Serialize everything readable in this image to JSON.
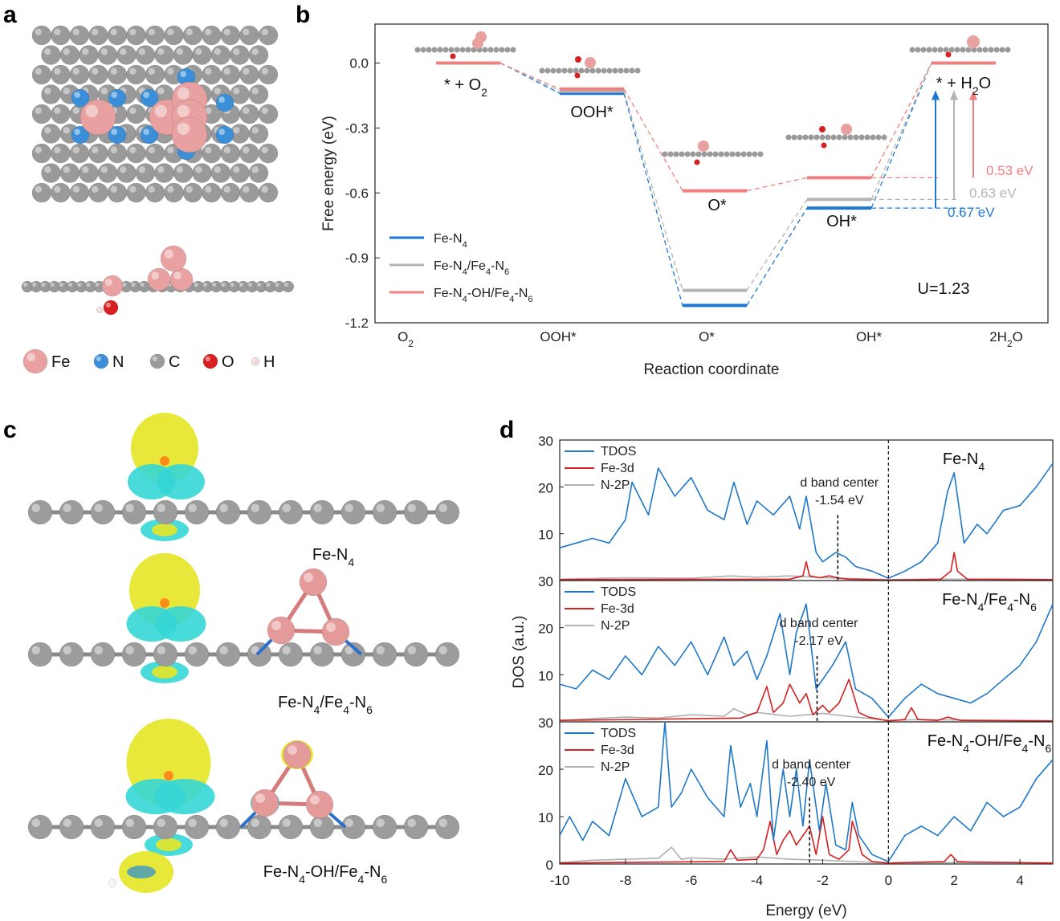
{
  "panels": {
    "a": "a",
    "b": "b",
    "c": "c",
    "d": "d"
  },
  "panel_a": {
    "legend": [
      {
        "label": "Fe",
        "color": "#e8a0a0"
      },
      {
        "label": "N",
        "color": "#3a8fd8"
      },
      {
        "label": "C",
        "color": "#9a9a9a"
      },
      {
        "label": "O",
        "color": "#d82020"
      },
      {
        "label": "H",
        "color": "#f2dada"
      }
    ]
  },
  "panel_c": {
    "labels": [
      "Fe-N4",
      "Fe-N4/Fe4-N6",
      "Fe-N4-OH/Fe4-N6"
    ],
    "colors": {
      "yellow": "#e6e626",
      "cyan": "#35d6d6",
      "carbon": "#9c9c9c",
      "iron": "#e59a9a",
      "iron_bond": "#d57b7b"
    }
  },
  "chart_data": [
    {
      "id": "b",
      "type": "line",
      "title": "",
      "xlabel": "Reaction coordinate",
      "ylabel": "Free energy (eV)",
      "categories": [
        "O2",
        "OOH*",
        "O*",
        "OH*",
        "2H2O"
      ],
      "ylim": [
        -1.2,
        0.18
      ],
      "yticks": [
        0.0,
        -0.3,
        -0.6,
        -0.9,
        -1.2
      ],
      "ytick_labels": [
        "0.0",
        "-0.3",
        "-0.6",
        "-0.9",
        "-1.2"
      ],
      "series": [
        {
          "name": "Fe-N4",
          "color": "#1f77d4",
          "values": [
            0.0,
            -0.14,
            -1.12,
            -0.67,
            0.0
          ]
        },
        {
          "name": "Fe-N4/Fe4-N6",
          "color": "#b4b4b4",
          "values": [
            0.0,
            -0.13,
            -1.05,
            -0.63,
            0.0
          ]
        },
        {
          "name": "Fe-N4-OH/Fe4-N6",
          "color": "#f08080",
          "values": [
            0.0,
            -0.12,
            -0.59,
            -0.53,
            0.0
          ]
        }
      ],
      "state_labels": [
        "* + O2",
        "OOH*",
        "O*",
        "OH*",
        "* + H2O"
      ],
      "overpotential_labels": [
        "0.53 eV",
        "0.63 eV",
        "0.67 eV"
      ],
      "annotation": "U=1.23",
      "grid": false,
      "legend_position": "bottom-left"
    },
    {
      "id": "d",
      "type": "line",
      "title": "",
      "xlabel": "Energy (eV)",
      "ylabel": "DOS (a.u.)",
      "xlim": [
        -10,
        5
      ],
      "xticks": [
        -10,
        -8,
        -6,
        -4,
        -2,
        0,
        2,
        4
      ],
      "ylim": [
        0,
        30
      ],
      "fermi_level": 0,
      "subplots": [
        {
          "label": "Fe-N4",
          "yticks": [
            10,
            20,
            30
          ],
          "ytick_labels": [
            "10",
            "20",
            "30"
          ],
          "legend": [
            "TDOS",
            "Fe-3d",
            "N-2P"
          ],
          "d_band_center_label": "d band center",
          "d_band_center_value": "-1.54 eV",
          "d_band_center": -1.54,
          "series": [
            {
              "name": "TDOS",
              "color": "#1f77c8",
              "x": [
                -10,
                -9.5,
                -9,
                -8.5,
                -8,
                -7.8,
                -7.3,
                -7,
                -6.5,
                -6,
                -5.5,
                -5,
                -4.7,
                -4.3,
                -4,
                -3.5,
                -3,
                -2.7,
                -2.5,
                -2.2,
                -2,
                -1.6,
                -1.3,
                -1,
                -0.5,
                0,
                0.5,
                1,
                1.5,
                1.8,
                2,
                2.3,
                2.7,
                3,
                3.5,
                4,
                4.5,
                5
              ],
              "values": [
                7,
                8,
                9,
                8,
                13,
                21,
                14,
                24,
                18,
                22,
                15,
                13,
                21,
                12,
                17,
                14,
                18,
                11,
                18,
                6,
                4,
                6,
                5,
                3,
                2,
                0.5,
                2,
                4,
                8,
                19,
                23,
                8,
                12,
                10,
                15,
                16,
                20,
                25
              ]
            },
            {
              "name": "Fe-3d",
              "color": "#d42020",
              "x": [
                -10,
                -3,
                -2.6,
                -2.5,
                -2.4,
                -2.1,
                -1.8,
                -1.5,
                -1.2,
                -0.5,
                0,
                1.6,
                1.9,
                2,
                2.1,
                2.4,
                5
              ],
              "values": [
                0.2,
                0.3,
                1,
                4,
                1,
                0.6,
                1,
                0.5,
                0.3,
                0.2,
                0.1,
                0.3,
                2,
                6,
                2,
                0.3,
                0.2
              ]
            },
            {
              "name": "N-2P",
              "color": "#b0b0b0",
              "x": [
                -10,
                -8,
                -6,
                -4.8,
                -4,
                -3,
                -2,
                -1,
                0,
                2,
                5
              ],
              "values": [
                0.3,
                0.6,
                0.5,
                1,
                0.7,
                1,
                0.6,
                0.4,
                0.2,
                0.3,
                0.2
              ]
            }
          ]
        },
        {
          "label": "Fe-N4/Fe4-N6",
          "yticks": [
            10,
            20,
            30
          ],
          "ytick_labels": [
            "10",
            "20",
            "30"
          ],
          "legend": [
            "TODS",
            "Fe-3d",
            "N-2P"
          ],
          "d_band_center_label": "d band center",
          "d_band_center_value": "-2.17 eV",
          "d_band_center": -2.17,
          "series": [
            {
              "name": "TDOS",
              "color": "#1f77c8",
              "x": [
                -10,
                -9.5,
                -9,
                -8.5,
                -8,
                -7.5,
                -7,
                -6.5,
                -6,
                -5.5,
                -5,
                -4.7,
                -4.3,
                -4,
                -3.7,
                -3.3,
                -3,
                -2.8,
                -2.5,
                -2.2,
                -2,
                -1.7,
                -1.3,
                -1,
                -0.5,
                0,
                0.5,
                1,
                1.5,
                2,
                2.5,
                3,
                3.5,
                4,
                4.5,
                5
              ],
              "values": [
                8,
                7,
                11,
                9,
                14,
                10,
                16,
                12,
                17,
                10,
                18,
                12,
                15,
                9,
                14,
                23,
                10,
                19,
                25,
                7,
                9,
                12,
                17,
                7,
                5,
                1,
                5,
                8,
                6,
                5,
                4,
                6,
                9,
                12,
                17,
                25
              ]
            },
            {
              "name": "Fe-3d",
              "color": "#d42020",
              "x": [
                -10,
                -4.5,
                -4,
                -3.7,
                -3.5,
                -3.2,
                -3,
                -2.7,
                -2.5,
                -2.3,
                -2,
                -1.8,
                -1.5,
                -1.2,
                -0.9,
                -0.6,
                0,
                0.5,
                0.7,
                0.9,
                1.5,
                1.8,
                2.2,
                5
              ],
              "values": [
                0.3,
                0.8,
                2,
                7.5,
                2,
                4,
                8,
                4,
                6,
                1.5,
                3.5,
                2,
                4,
                9,
                2,
                1,
                0.2,
                0.5,
                3,
                0.5,
                0.3,
                1,
                0.3,
                0.2
              ]
            },
            {
              "name": "N-2P",
              "color": "#b0b0b0",
              "x": [
                -10,
                -9,
                -8,
                -7,
                -6,
                -5,
                -4.7,
                -4.3,
                -4,
                -3,
                -2,
                -1,
                0,
                1,
                2,
                5
              ],
              "values": [
                0.3,
                0.7,
                1,
                0.8,
                1.5,
                1.2,
                2.8,
                1.5,
                2,
                1.2,
                1.8,
                1,
                0.3,
                0.5,
                0.4,
                0.2
              ]
            }
          ]
        },
        {
          "label": "Fe-N4-OH/Fe4-N6",
          "yticks": [
            0,
            10,
            20,
            30
          ],
          "ytick_labels": [
            "0",
            "10",
            "20",
            "30"
          ],
          "legend": [
            "TODS",
            "Fe-3d",
            "N-2P"
          ],
          "d_band_center_label": "d band center",
          "d_band_center_value": "-2.40 eV",
          "d_band_center": -2.4,
          "series": [
            {
              "name": "TDOS",
              "color": "#1f77c8",
              "x": [
                -10,
                -9.7,
                -9.3,
                -9,
                -8.5,
                -8,
                -7.5,
                -7,
                -6.8,
                -6.6,
                -6.3,
                -6,
                -5.5,
                -5,
                -4.8,
                -4.5,
                -4.2,
                -4,
                -3.7,
                -3.5,
                -3.2,
                -3,
                -2.8,
                -2.6,
                -2.4,
                -2.1,
                -1.9,
                -1.6,
                -1.3,
                -1.1,
                -0.9,
                -0.5,
                0,
                0.5,
                1,
                1.5,
                2,
                2.5,
                3,
                3.5,
                4,
                4.5,
                5
              ],
              "values": [
                6,
                10,
                5,
                9,
                6,
                18,
                10,
                12,
                30,
                12,
                15,
                20,
                14,
                10,
                25,
                12,
                17,
                10,
                26,
                5,
                20,
                10,
                20,
                8,
                22,
                7,
                17,
                4,
                3,
                13,
                6,
                2,
                0.5,
                6,
                8,
                6,
                10,
                7,
                13,
                10,
                12,
                18,
                22
              ]
            },
            {
              "name": "Fe-3d",
              "color": "#d42020",
              "x": [
                -10,
                -5,
                -4.8,
                -4.6,
                -4,
                -3.8,
                -3.6,
                -3.4,
                -3.2,
                -3,
                -2.8,
                -2.6,
                -2.4,
                -2.2,
                -2,
                -1.8,
                -1.5,
                -1.2,
                -1.1,
                -1,
                -0.8,
                -0.5,
                0,
                1.7,
                1.9,
                2.1,
                2.5,
                5
              ],
              "values": [
                0.2,
                0.5,
                3,
                0.8,
                1,
                3,
                9,
                2,
                5,
                7,
                4,
                6,
                8,
                2,
                10,
                2,
                1,
                3,
                9,
                7,
                2,
                0.5,
                0.2,
                0.5,
                2,
                0.5,
                0.4,
                0.2
              ]
            },
            {
              "name": "N-2P",
              "color": "#b0b0b0",
              "x": [
                -10,
                -9,
                -8,
                -7,
                -6.6,
                -6.3,
                -6,
                -5,
                -4,
                -3,
                -2,
                -1,
                0,
                2,
                5
              ],
              "values": [
                0.3,
                0.8,
                1,
                1.2,
                3.5,
                1,
                1.3,
                1,
                1.5,
                1,
                0.8,
                0.5,
                0.2,
                0.3,
                0.2
              ]
            }
          ]
        }
      ]
    }
  ]
}
